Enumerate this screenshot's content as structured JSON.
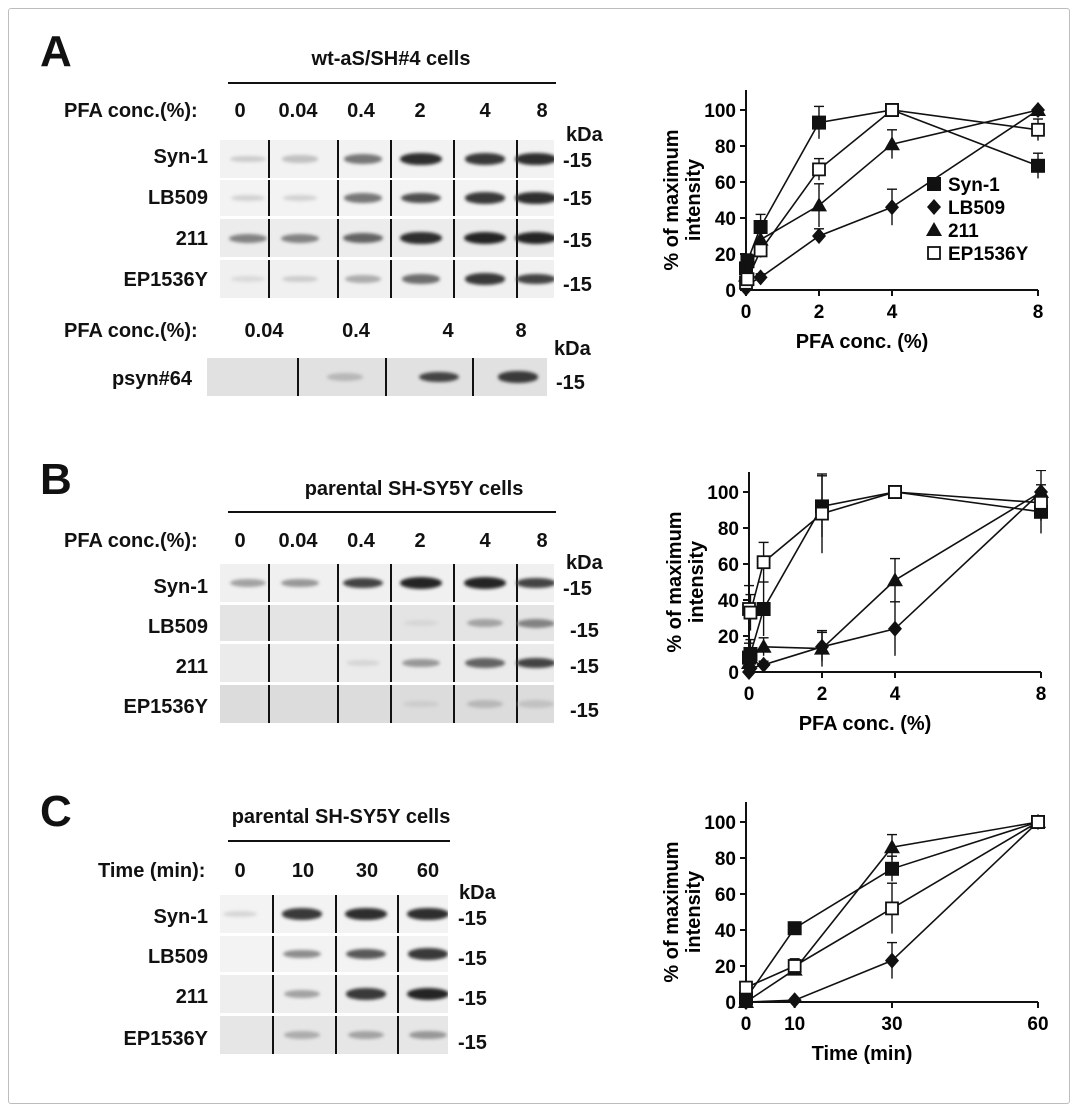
{
  "panels": {
    "A": {
      "letter": "A",
      "header": "wt-aS/SH#4 cells",
      "conc_label": "PFA conc.(%):",
      "conc_ticks": [
        "0",
        "0.04",
        "0.4",
        "2",
        "4",
        "8"
      ],
      "kda": "kDa",
      "lanes": [
        "Syn-1",
        "LB509",
        "211",
        "EP1536Y"
      ],
      "marker": "-15",
      "sub_conc_label": "PFA conc.(%):",
      "sub_ticks": [
        "0.04",
        "0.4",
        "4",
        "8"
      ],
      "sub_kda": "kDa",
      "sub_lane": "psyn#64",
      "sub_marker": "-15"
    },
    "B": {
      "letter": "B",
      "header": "parental SH-SY5Y cells",
      "conc_label": "PFA conc.(%):",
      "conc_ticks": [
        "0",
        "0.04",
        "0.4",
        "2",
        "4",
        "8"
      ],
      "kda": "kDa",
      "lanes": [
        "Syn-1",
        "LB509",
        "211",
        "EP1536Y"
      ],
      "marker": "-15"
    },
    "C": {
      "letter": "C",
      "header": "parental SH-SY5Y cells",
      "time_label": "Time (min):",
      "time_ticks": [
        "0",
        "10",
        "30",
        "60"
      ],
      "kda": "kDa",
      "lanes": [
        "Syn-1",
        "LB509",
        "211",
        "EP1536Y"
      ],
      "marker": "-15"
    }
  },
  "blot_intensity": {
    "A": {
      "Syn-1": [
        0.15,
        0.2,
        0.55,
        0.9,
        0.85,
        0.9
      ],
      "LB509": [
        0.12,
        0.12,
        0.55,
        0.75,
        0.85,
        0.9
      ],
      "211": [
        0.5,
        0.5,
        0.65,
        0.9,
        0.95,
        0.95
      ],
      "EP1536Y": [
        0.08,
        0.15,
        0.3,
        0.6,
        0.85,
        0.8
      ]
    },
    "A_sub": {
      "psyn#64": [
        0.0,
        0.25,
        0.8,
        0.85
      ]
    },
    "B": {
      "Syn-1": [
        0.35,
        0.4,
        0.8,
        0.95,
        0.95,
        0.8
      ],
      "LB509": [
        0.0,
        0.0,
        0.0,
        0.1,
        0.35,
        0.5
      ],
      "211": [
        0.0,
        0.0,
        0.1,
        0.4,
        0.65,
        0.8
      ],
      "EP1536Y": [
        0.0,
        0.0,
        0.0,
        0.15,
        0.25,
        0.2
      ]
    },
    "C": {
      "Syn-1": [
        0.1,
        0.85,
        0.9,
        0.9
      ],
      "LB509": [
        0.0,
        0.45,
        0.7,
        0.85
      ],
      "211": [
        0.0,
        0.35,
        0.85,
        0.95
      ],
      "EP1536Y": [
        0.0,
        0.3,
        0.35,
        0.4
      ]
    }
  },
  "chart_data": [
    {
      "type": "line",
      "panel": "A",
      "xlabel": "PFA conc. (%)",
      "ylabel": "% of maximum intensity",
      "xlim": [
        0,
        8
      ],
      "ylim": [
        0,
        100
      ],
      "xticks": [
        0,
        2,
        4,
        8
      ],
      "yticks": [
        0,
        20,
        40,
        60,
        80,
        100
      ],
      "legend": "right",
      "x": [
        0,
        0.04,
        0.4,
        2,
        4,
        8
      ],
      "series": [
        {
          "name": "Syn-1",
          "marker": "square-filled",
          "values": [
            12,
            16,
            35,
            93,
            100,
            69
          ],
          "err": [
            4,
            4,
            7,
            9,
            0,
            7
          ]
        },
        {
          "name": "LB509",
          "marker": "diamond",
          "values": [
            1,
            3,
            7,
            30,
            46,
            100
          ],
          "err": [
            1,
            1,
            2,
            4,
            10,
            0
          ]
        },
        {
          "name": "211",
          "marker": "triangle",
          "values": [
            8,
            10,
            28,
            47,
            81,
            100
          ],
          "err": [
            3,
            3,
            4,
            12,
            8,
            0
          ]
        },
        {
          "name": "EP1536Y",
          "marker": "square-open",
          "values": [
            4,
            6,
            22,
            67,
            100,
            89
          ],
          "err": [
            2,
            2,
            4,
            6,
            0,
            6
          ]
        }
      ]
    },
    {
      "type": "line",
      "panel": "B",
      "xlabel": "PFA conc. (%)",
      "ylabel": "% of maximum intensity",
      "xlim": [
        0,
        8
      ],
      "ylim": [
        0,
        100
      ],
      "xticks": [
        0,
        2,
        4,
        8
      ],
      "yticks": [
        0,
        20,
        40,
        60,
        80,
        100
      ],
      "x": [
        0,
        0.04,
        0.4,
        2,
        4,
        8
      ],
      "series": [
        {
          "name": "Syn-1",
          "marker": "square-filled",
          "values": [
            8,
            10,
            35,
            92,
            100,
            89
          ],
          "err": [
            8,
            8,
            15,
            17,
            0,
            12
          ]
        },
        {
          "name": "LB509",
          "marker": "diamond",
          "values": [
            0,
            2,
            4,
            14,
            24,
            100
          ],
          "err": [
            1,
            1,
            2,
            8,
            15,
            0
          ]
        },
        {
          "name": "211",
          "marker": "triangle",
          "values": [
            5,
            8,
            14,
            13,
            51,
            100
          ],
          "err": [
            3,
            3,
            5,
            10,
            12,
            12
          ]
        },
        {
          "name": "EP1536Y",
          "marker": "square-open",
          "values": [
            35,
            33,
            61,
            88,
            100,
            94
          ],
          "err": [
            13,
            10,
            11,
            22,
            0,
            10
          ]
        }
      ]
    },
    {
      "type": "line",
      "panel": "C",
      "xlabel": "Time (min)",
      "ylabel": "% of maximum intensity",
      "xlim": [
        0,
        60
      ],
      "ylim": [
        0,
        100
      ],
      "xticks": [
        0,
        10,
        30,
        60
      ],
      "yticks": [
        0,
        20,
        40,
        60,
        80,
        100
      ],
      "x": [
        0,
        10,
        30,
        60
      ],
      "series": [
        {
          "name": "Syn-1",
          "marker": "square-filled",
          "values": [
            2,
            41,
            74,
            100
          ],
          "err": [
            2,
            3,
            7,
            0
          ]
        },
        {
          "name": "LB509",
          "marker": "diamond",
          "values": [
            0,
            1,
            23,
            100
          ],
          "err": [
            1,
            1,
            10,
            0
          ]
        },
        {
          "name": "211",
          "marker": "triangle",
          "values": [
            0,
            18,
            86,
            100
          ],
          "err": [
            1,
            3,
            7,
            0
          ]
        },
        {
          "name": "EP1536Y",
          "marker": "square-open",
          "values": [
            8,
            20,
            52,
            100
          ],
          "err": [
            3,
            4,
            14,
            0
          ]
        }
      ]
    }
  ]
}
